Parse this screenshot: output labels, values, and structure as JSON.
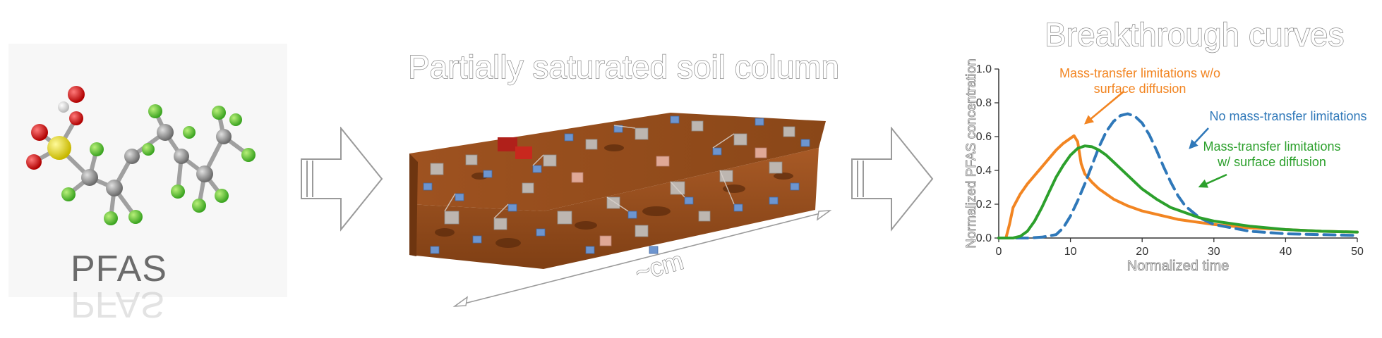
{
  "molecule": {
    "label": "PFAS"
  },
  "soil": {
    "title": "Partially saturated soil column",
    "scale_label": "~cm"
  },
  "chart_data": {
    "type": "line",
    "title": "Breakthrough curves",
    "xlabel": "Normalized time",
    "ylabel": "Normalized PFAS concentration",
    "xlim": [
      0,
      50
    ],
    "ylim": [
      0,
      1.0
    ],
    "xticks": [
      "0",
      "10",
      "20",
      "30",
      "40",
      "50"
    ],
    "yticks": [
      "0.0",
      "0.2",
      "0.4",
      "0.6",
      "0.8",
      "1.0"
    ],
    "grid": false,
    "series": [
      {
        "name": "Mass-transfer limitations w/o surface diffusion",
        "name_lines": [
          "Mass-transfer limitations w/o",
          "surface diffusion"
        ],
        "color": "#f28522",
        "dash": "solid",
        "x": [
          0,
          1,
          1.5,
          2,
          3,
          4,
          5,
          6,
          7,
          8,
          9,
          10,
          10.5,
          11,
          11.5,
          12,
          13,
          14,
          16,
          18,
          20,
          25,
          30,
          35,
          40,
          45,
          50
        ],
        "y": [
          0,
          0.0,
          0.08,
          0.18,
          0.26,
          0.32,
          0.37,
          0.42,
          0.47,
          0.52,
          0.56,
          0.59,
          0.605,
          0.57,
          0.44,
          0.38,
          0.33,
          0.29,
          0.23,
          0.19,
          0.16,
          0.11,
          0.08,
          0.06,
          0.05,
          0.04,
          0.035
        ]
      },
      {
        "name": "No mass-transfer limitations",
        "name_lines": [
          "No mass-transfer limitations"
        ],
        "color": "#2f78b9",
        "dash": "dashed",
        "x": [
          0,
          4,
          6,
          8,
          9,
          10,
          11,
          12,
          13,
          14,
          15,
          16,
          17,
          18,
          19,
          20,
          21,
          22,
          23,
          24,
          25,
          26,
          28,
          30,
          35,
          40,
          45,
          50
        ],
        "y": [
          0,
          0.0,
          0.005,
          0.02,
          0.06,
          0.13,
          0.22,
          0.32,
          0.43,
          0.54,
          0.63,
          0.69,
          0.725,
          0.735,
          0.72,
          0.68,
          0.61,
          0.52,
          0.42,
          0.33,
          0.25,
          0.19,
          0.12,
          0.08,
          0.04,
          0.025,
          0.02,
          0.015
        ]
      },
      {
        "name": "Mass-transfer limitations w/ surface diffusion",
        "name_lines": [
          "Mass-transfer limitations",
          "w/ surface diffusion"
        ],
        "color": "#2ca02c",
        "dash": "solid",
        "x": [
          0,
          2,
          3,
          4,
          5,
          6,
          7,
          8,
          9,
          10,
          11,
          12,
          13,
          14,
          15,
          16,
          17,
          18,
          19,
          20,
          22,
          24,
          26,
          28,
          30,
          35,
          40,
          45,
          50
        ],
        "y": [
          0,
          0.0,
          0.01,
          0.04,
          0.1,
          0.18,
          0.27,
          0.36,
          0.43,
          0.49,
          0.53,
          0.545,
          0.54,
          0.52,
          0.49,
          0.45,
          0.41,
          0.37,
          0.33,
          0.29,
          0.23,
          0.18,
          0.15,
          0.12,
          0.1,
          0.07,
          0.05,
          0.04,
          0.035
        ]
      }
    ]
  }
}
